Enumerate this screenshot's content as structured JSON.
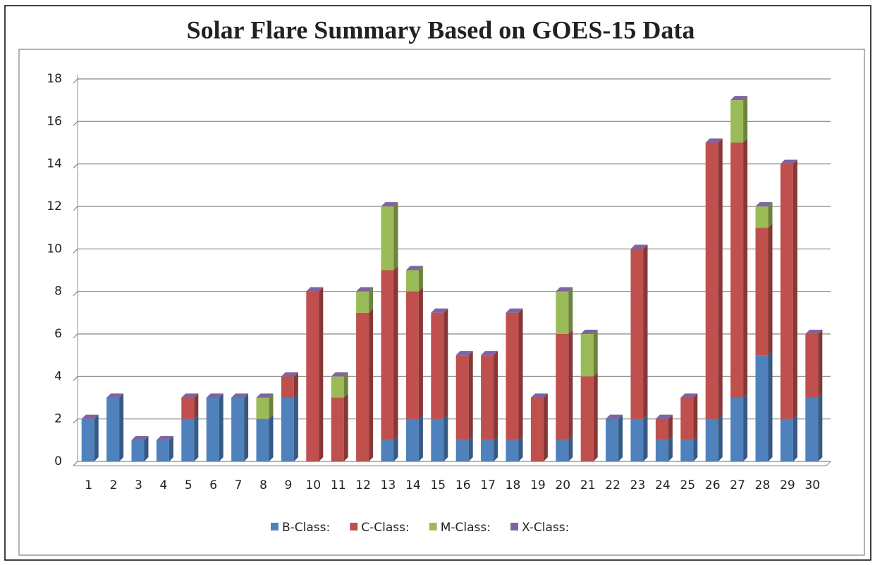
{
  "chart_data": {
    "type": "stacked_bar",
    "title": "Solar Flare Summary Based on GOES-15 Data",
    "categories": [
      "1",
      "2",
      "3",
      "4",
      "5",
      "6",
      "7",
      "8",
      "9",
      "10",
      "11",
      "12",
      "13",
      "14",
      "15",
      "16",
      "17",
      "18",
      "19",
      "20",
      "21",
      "22",
      "23",
      "24",
      "25",
      "26",
      "27",
      "28",
      "29",
      "30"
    ],
    "series": [
      {
        "name": "B-Class:",
        "color": "#4f81bd",
        "values": [
          2,
          3,
          1,
          1,
          2,
          3,
          3,
          2,
          3,
          0,
          0,
          0,
          1,
          2,
          2,
          1,
          1,
          1,
          0,
          1,
          0,
          2,
          2,
          1,
          1,
          2,
          3,
          5,
          2,
          3
        ]
      },
      {
        "name": "C-Class:",
        "color": "#c0504d",
        "values": [
          0,
          0,
          0,
          0,
          1,
          0,
          0,
          0,
          1,
          8,
          3,
          7,
          8,
          6,
          5,
          4,
          4,
          6,
          3,
          5,
          4,
          0,
          8,
          1,
          2,
          13,
          12,
          6,
          12,
          3
        ]
      },
      {
        "name": "M-Class:",
        "color": "#9bbb59",
        "values": [
          0,
          0,
          0,
          0,
          0,
          0,
          0,
          1,
          0,
          0,
          1,
          1,
          3,
          1,
          0,
          0,
          0,
          0,
          0,
          2,
          2,
          0,
          0,
          0,
          0,
          0,
          2,
          1,
          0,
          0
        ]
      },
      {
        "name": "X-Class:",
        "color": "#8064a2",
        "values": [
          0,
          0,
          0,
          0,
          0,
          0,
          0,
          0,
          0,
          0,
          0,
          0,
          0,
          0,
          0,
          0,
          0,
          0,
          0,
          0,
          0,
          0,
          0,
          0,
          0,
          0,
          0,
          0,
          0,
          0
        ]
      }
    ],
    "ylim": [
      0,
      18
    ],
    "yticks": [
      0,
      2,
      4,
      6,
      8,
      10,
      12,
      14,
      16,
      18
    ],
    "grid": true,
    "legend": "bottom"
  }
}
